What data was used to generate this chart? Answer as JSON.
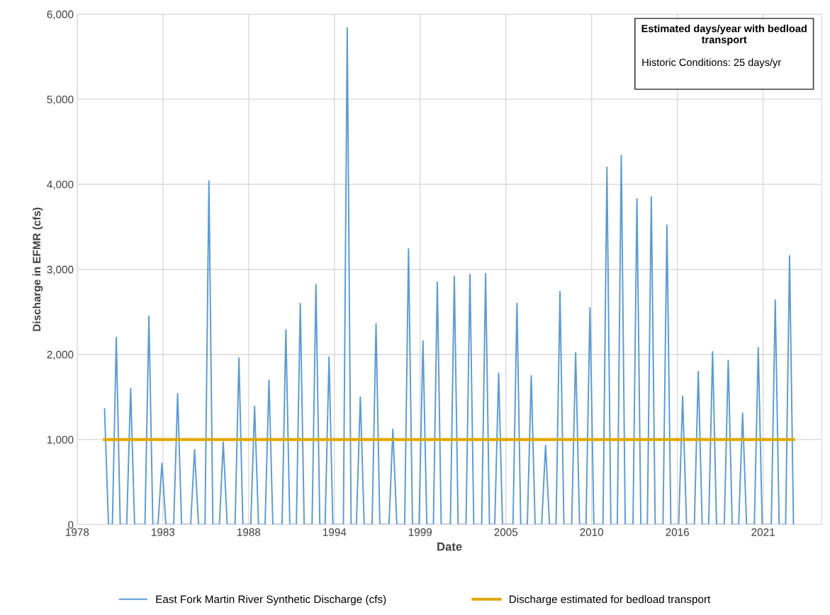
{
  "chart_data": {
    "type": "line",
    "xlabel": "Date",
    "ylabel": "Discharge in EFMR (cfs)",
    "xlim": [
      "1978-01-01",
      "2025-07-20"
    ],
    "xticks": [
      {
        "value": "1978-01-01",
        "label": "1978"
      },
      {
        "value": "1983-06-24",
        "label": "1983"
      },
      {
        "value": "1988-12-14",
        "label": "1988"
      },
      {
        "value": "1994-06-06",
        "label": "1994"
      },
      {
        "value": "1999-11-27",
        "label": "1999"
      },
      {
        "value": "2005-05-19",
        "label": "2005"
      },
      {
        "value": "2010-11-09",
        "label": "2010"
      },
      {
        "value": "2016-05-01",
        "label": "2016"
      },
      {
        "value": "2021-10-22",
        "label": "2021"
      }
    ],
    "ylim": [
      0,
      6000
    ],
    "yticks": [
      {
        "value": 0,
        "label": "0"
      },
      {
        "value": 1000,
        "label": "1,000"
      },
      {
        "value": 2000,
        "label": "2,000"
      },
      {
        "value": 3000,
        "label": "3,000"
      },
      {
        "value": 4000,
        "label": "4,000"
      },
      {
        "value": 5000,
        "label": "5,000"
      },
      {
        "value": 6000,
        "label": "6,000"
      }
    ],
    "grid": true,
    "legend": "bottom",
    "marker": "none",
    "line_style": "solid",
    "annotations": [
      "Estimated days/year with bedload transport",
      "Historic Conditions: 25 days/yr"
    ],
    "series": [
      {
        "name": "East Fork Martin River Synthetic Discharge (cfs)",
        "color": "#5b9bd5",
        "x": [
          "1979-10",
          "1980-01",
          "1980-04",
          "1980-07",
          "1980-10",
          "1981-03",
          "1981-06",
          "1981-09",
          "1982-05",
          "1982-08",
          "1982-11",
          "1983-03",
          "1983-06",
          "1983-09",
          "1984-03",
          "1984-06",
          "1984-09",
          "1985-04",
          "1985-07",
          "1985-10",
          "1986-03",
          "1986-06",
          "1986-09",
          "1987-02",
          "1987-05",
          "1987-08",
          "1988-02",
          "1988-05",
          "1988-08",
          "1989-02",
          "1989-05",
          "1989-08",
          "1990-01",
          "1990-04",
          "1990-07",
          "1991-02",
          "1991-05",
          "1991-08",
          "1992-01",
          "1992-04",
          "1992-07",
          "1993-01",
          "1993-04",
          "1993-07",
          "1993-11",
          "1994-02",
          "1994-05",
          "1995-01",
          "1995-04",
          "1995-07",
          "1995-11",
          "1996-02",
          "1996-05",
          "1996-11",
          "1997-02",
          "1997-05",
          "1997-12",
          "1998-03",
          "1998-06",
          "1998-12",
          "1999-03",
          "1999-06",
          "1999-11",
          "2000-02",
          "2000-05",
          "2000-10",
          "2001-01",
          "2001-04",
          "2001-11",
          "2002-02",
          "2002-05",
          "2002-11",
          "2003-02",
          "2003-05",
          "2003-11",
          "2004-02",
          "2004-05",
          "2004-09",
          "2004-12",
          "2005-03",
          "2005-11",
          "2006-02",
          "2006-05",
          "2006-10",
          "2007-01",
          "2007-04",
          "2007-09",
          "2007-12",
          "2008-03",
          "2008-08",
          "2008-11",
          "2009-02",
          "2009-08",
          "2009-11",
          "2010-02",
          "2010-07",
          "2010-10",
          "2011-01",
          "2011-08",
          "2011-11",
          "2012-02",
          "2012-07",
          "2012-10",
          "2013-01",
          "2013-07",
          "2013-10",
          "2014-01",
          "2014-06",
          "2014-09",
          "2014-12",
          "2015-06",
          "2015-09",
          "2015-12",
          "2016-06",
          "2016-09",
          "2016-12",
          "2017-06",
          "2017-09",
          "2017-12",
          "2018-05",
          "2018-08",
          "2018-11",
          "2019-05",
          "2019-08",
          "2019-11",
          "2020-04",
          "2020-07",
          "2020-10",
          "2021-04",
          "2021-07",
          "2021-10",
          "2022-05",
          "2022-08",
          "2022-11",
          "2023-04",
          "2023-07",
          "2023-10"
        ],
        "values": [
          1360,
          0,
          0,
          2200,
          0,
          0,
          1600,
          0,
          0,
          2450,
          0,
          0,
          720,
          0,
          0,
          1540,
          0,
          0,
          880,
          0,
          0,
          4040,
          0,
          0,
          970,
          0,
          0,
          1960,
          0,
          0,
          1390,
          0,
          0,
          1700,
          0,
          0,
          2290,
          0,
          0,
          2600,
          0,
          0,
          2820,
          0,
          0,
          1970,
          0,
          0,
          5840,
          0,
          0,
          1500,
          0,
          0,
          2360,
          0,
          0,
          1120,
          0,
          0,
          3240,
          0,
          0,
          2160,
          0,
          0,
          2850,
          0,
          0,
          2920,
          0,
          0,
          2940,
          0,
          0,
          2950,
          0,
          0,
          1780,
          0,
          0,
          2600,
          0,
          0,
          1750,
          0,
          0,
          930,
          0,
          0,
          2740,
          0,
          0,
          2020,
          0,
          0,
          2550,
          0,
          0,
          4200,
          0,
          0,
          4340,
          0,
          0,
          3830,
          0,
          0,
          3850,
          0,
          0,
          3520,
          0,
          0,
          1510,
          0,
          0,
          1800,
          0,
          0,
          2030,
          0,
          0,
          1930,
          0,
          0,
          1310,
          0,
          0,
          2080,
          0,
          0,
          2640,
          0,
          0,
          3160,
          0
        ]
      },
      {
        "name": "Discharge estimated for bedload transport",
        "color": "#e0a800",
        "x": [
          "1979-10",
          "2023-10"
        ],
        "values": [
          1000,
          1000
        ]
      }
    ]
  }
}
